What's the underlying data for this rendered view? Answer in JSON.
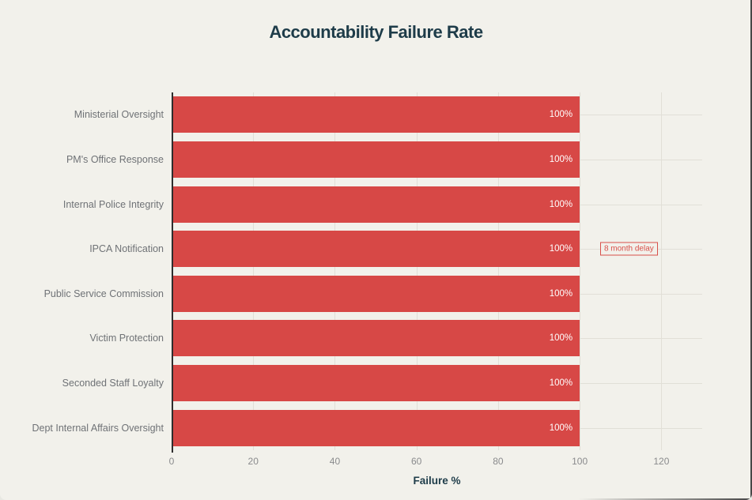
{
  "title": "Accountability Failure Rate",
  "chart_data": {
    "type": "bar",
    "orientation": "horizontal",
    "title": "Accountability Failure Rate",
    "categories": [
      "Ministerial Oversight",
      "PM's Office Response",
      "Internal Police Integrity",
      "IPCA Notification",
      "Public Service Commission",
      "Victim Protection",
      "Seconded Staff Loyalty",
      "Dept Internal Affairs Oversight"
    ],
    "values": [
      100,
      100,
      100,
      100,
      100,
      100,
      100,
      100
    ],
    "value_suffix": "%",
    "xlabel": "Failure %",
    "ylabel": "",
    "xlim": [
      0,
      130
    ],
    "xticks": [
      0,
      20,
      40,
      60,
      80,
      100,
      120
    ],
    "grid": true,
    "legend": "none",
    "annotations": [
      {
        "text": "8 month delay",
        "category": "IPCA Notification",
        "category_index": 3,
        "x": 105
      }
    ]
  },
  "colors": {
    "background": "#f2f1eb",
    "bar": "#d74846",
    "bar_value_label": "#ffffff",
    "title": "#1e3c49",
    "tick_label": "#8a8b8d",
    "category_label": "#6f7276",
    "gridline": "#e1dfd7",
    "axis_line": "#2e2e2e",
    "annotation": "#d8504a",
    "window_edge": "#474747"
  }
}
